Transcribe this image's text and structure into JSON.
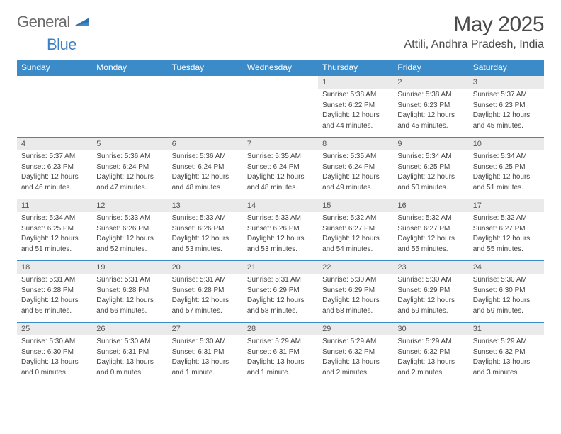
{
  "brand": {
    "word1": "General",
    "word2": "Blue"
  },
  "header": {
    "title": "May 2025",
    "location": "Attili, Andhra Pradesh, India"
  },
  "colors": {
    "header_blue": "#3b8bc9",
    "logo_blue": "#3b7fc4",
    "date_bg": "#eaeaea",
    "text": "#4a4a4a"
  },
  "days_of_week": [
    "Sunday",
    "Monday",
    "Tuesday",
    "Wednesday",
    "Thursday",
    "Friday",
    "Saturday"
  ],
  "weeks": [
    [
      null,
      null,
      null,
      null,
      {
        "d": "1",
        "sr": "Sunrise: 5:38 AM",
        "ss": "Sunset: 6:22 PM",
        "dl1": "Daylight: 12 hours",
        "dl2": "and 44 minutes."
      },
      {
        "d": "2",
        "sr": "Sunrise: 5:38 AM",
        "ss": "Sunset: 6:23 PM",
        "dl1": "Daylight: 12 hours",
        "dl2": "and 45 minutes."
      },
      {
        "d": "3",
        "sr": "Sunrise: 5:37 AM",
        "ss": "Sunset: 6:23 PM",
        "dl1": "Daylight: 12 hours",
        "dl2": "and 45 minutes."
      }
    ],
    [
      {
        "d": "4",
        "sr": "Sunrise: 5:37 AM",
        "ss": "Sunset: 6:23 PM",
        "dl1": "Daylight: 12 hours",
        "dl2": "and 46 minutes."
      },
      {
        "d": "5",
        "sr": "Sunrise: 5:36 AM",
        "ss": "Sunset: 6:24 PM",
        "dl1": "Daylight: 12 hours",
        "dl2": "and 47 minutes."
      },
      {
        "d": "6",
        "sr": "Sunrise: 5:36 AM",
        "ss": "Sunset: 6:24 PM",
        "dl1": "Daylight: 12 hours",
        "dl2": "and 48 minutes."
      },
      {
        "d": "7",
        "sr": "Sunrise: 5:35 AM",
        "ss": "Sunset: 6:24 PM",
        "dl1": "Daylight: 12 hours",
        "dl2": "and 48 minutes."
      },
      {
        "d": "8",
        "sr": "Sunrise: 5:35 AM",
        "ss": "Sunset: 6:24 PM",
        "dl1": "Daylight: 12 hours",
        "dl2": "and 49 minutes."
      },
      {
        "d": "9",
        "sr": "Sunrise: 5:34 AM",
        "ss": "Sunset: 6:25 PM",
        "dl1": "Daylight: 12 hours",
        "dl2": "and 50 minutes."
      },
      {
        "d": "10",
        "sr": "Sunrise: 5:34 AM",
        "ss": "Sunset: 6:25 PM",
        "dl1": "Daylight: 12 hours",
        "dl2": "and 51 minutes."
      }
    ],
    [
      {
        "d": "11",
        "sr": "Sunrise: 5:34 AM",
        "ss": "Sunset: 6:25 PM",
        "dl1": "Daylight: 12 hours",
        "dl2": "and 51 minutes."
      },
      {
        "d": "12",
        "sr": "Sunrise: 5:33 AM",
        "ss": "Sunset: 6:26 PM",
        "dl1": "Daylight: 12 hours",
        "dl2": "and 52 minutes."
      },
      {
        "d": "13",
        "sr": "Sunrise: 5:33 AM",
        "ss": "Sunset: 6:26 PM",
        "dl1": "Daylight: 12 hours",
        "dl2": "and 53 minutes."
      },
      {
        "d": "14",
        "sr": "Sunrise: 5:33 AM",
        "ss": "Sunset: 6:26 PM",
        "dl1": "Daylight: 12 hours",
        "dl2": "and 53 minutes."
      },
      {
        "d": "15",
        "sr": "Sunrise: 5:32 AM",
        "ss": "Sunset: 6:27 PM",
        "dl1": "Daylight: 12 hours",
        "dl2": "and 54 minutes."
      },
      {
        "d": "16",
        "sr": "Sunrise: 5:32 AM",
        "ss": "Sunset: 6:27 PM",
        "dl1": "Daylight: 12 hours",
        "dl2": "and 55 minutes."
      },
      {
        "d": "17",
        "sr": "Sunrise: 5:32 AM",
        "ss": "Sunset: 6:27 PM",
        "dl1": "Daylight: 12 hours",
        "dl2": "and 55 minutes."
      }
    ],
    [
      {
        "d": "18",
        "sr": "Sunrise: 5:31 AM",
        "ss": "Sunset: 6:28 PM",
        "dl1": "Daylight: 12 hours",
        "dl2": "and 56 minutes."
      },
      {
        "d": "19",
        "sr": "Sunrise: 5:31 AM",
        "ss": "Sunset: 6:28 PM",
        "dl1": "Daylight: 12 hours",
        "dl2": "and 56 minutes."
      },
      {
        "d": "20",
        "sr": "Sunrise: 5:31 AM",
        "ss": "Sunset: 6:28 PM",
        "dl1": "Daylight: 12 hours",
        "dl2": "and 57 minutes."
      },
      {
        "d": "21",
        "sr": "Sunrise: 5:31 AM",
        "ss": "Sunset: 6:29 PM",
        "dl1": "Daylight: 12 hours",
        "dl2": "and 58 minutes."
      },
      {
        "d": "22",
        "sr": "Sunrise: 5:30 AM",
        "ss": "Sunset: 6:29 PM",
        "dl1": "Daylight: 12 hours",
        "dl2": "and 58 minutes."
      },
      {
        "d": "23",
        "sr": "Sunrise: 5:30 AM",
        "ss": "Sunset: 6:29 PM",
        "dl1": "Daylight: 12 hours",
        "dl2": "and 59 minutes."
      },
      {
        "d": "24",
        "sr": "Sunrise: 5:30 AM",
        "ss": "Sunset: 6:30 PM",
        "dl1": "Daylight: 12 hours",
        "dl2": "and 59 minutes."
      }
    ],
    [
      {
        "d": "25",
        "sr": "Sunrise: 5:30 AM",
        "ss": "Sunset: 6:30 PM",
        "dl1": "Daylight: 13 hours",
        "dl2": "and 0 minutes."
      },
      {
        "d": "26",
        "sr": "Sunrise: 5:30 AM",
        "ss": "Sunset: 6:31 PM",
        "dl1": "Daylight: 13 hours",
        "dl2": "and 0 minutes."
      },
      {
        "d": "27",
        "sr": "Sunrise: 5:30 AM",
        "ss": "Sunset: 6:31 PM",
        "dl1": "Daylight: 13 hours",
        "dl2": "and 1 minute."
      },
      {
        "d": "28",
        "sr": "Sunrise: 5:29 AM",
        "ss": "Sunset: 6:31 PM",
        "dl1": "Daylight: 13 hours",
        "dl2": "and 1 minute."
      },
      {
        "d": "29",
        "sr": "Sunrise: 5:29 AM",
        "ss": "Sunset: 6:32 PM",
        "dl1": "Daylight: 13 hours",
        "dl2": "and 2 minutes."
      },
      {
        "d": "30",
        "sr": "Sunrise: 5:29 AM",
        "ss": "Sunset: 6:32 PM",
        "dl1": "Daylight: 13 hours",
        "dl2": "and 2 minutes."
      },
      {
        "d": "31",
        "sr": "Sunrise: 5:29 AM",
        "ss": "Sunset: 6:32 PM",
        "dl1": "Daylight: 13 hours",
        "dl2": "and 3 minutes."
      }
    ]
  ]
}
